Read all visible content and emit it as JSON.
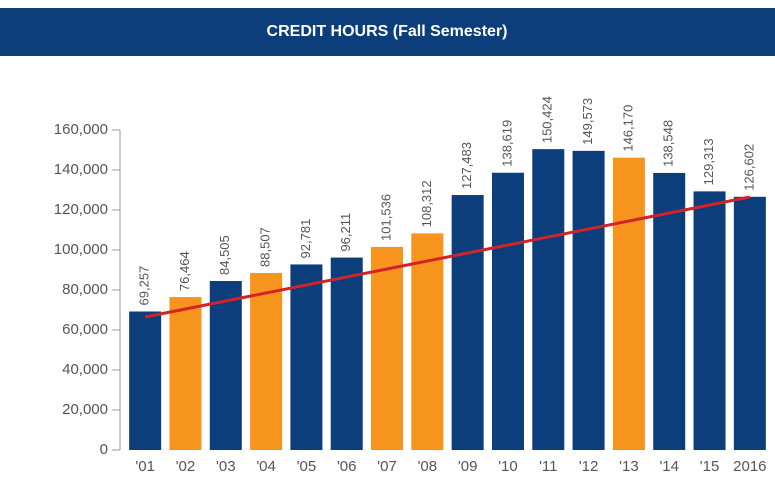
{
  "chart_data": {
    "type": "bar",
    "title": "CREDIT HOURS (Fall Semester)",
    "categories": [
      "'01",
      "'02",
      "'03",
      "'04",
      "'05",
      "'06",
      "'07",
      "'08",
      "'09",
      "'10",
      "'11",
      "'12",
      "'13",
      "'14",
      "'15",
      "2016"
    ],
    "values": [
      69257,
      76464,
      84505,
      88507,
      92781,
      96211,
      101536,
      108312,
      127483,
      138619,
      150424,
      149573,
      146170,
      138548,
      129313,
      126602
    ],
    "value_labels": [
      "69,257",
      "76,464",
      "84,505",
      "88,507",
      "92,781",
      "96,211",
      "101,536",
      "108,312",
      "127,483",
      "138,619",
      "150,424",
      "149,573",
      "146,170",
      "138,548",
      "129,313",
      "126,602"
    ],
    "colors": [
      "#0b3e7a",
      "#f7941e",
      "#0b3e7a",
      "#f7941e",
      "#0b3e7a",
      "#0b3e7a",
      "#f7941e",
      "#f7941e",
      "#0b3e7a",
      "#0b3e7a",
      "#0b3e7a",
      "#0b3e7a",
      "#f7941e",
      "#0b3e7a",
      "#0b3e7a",
      "#0b3e7a"
    ],
    "ylim": [
      0,
      160000
    ],
    "yticks": [
      0,
      {
        "value": 20000,
        "label": "20,000"
      },
      {
        "value": 40000,
        "label": "40,000"
      },
      {
        "value": 60000,
        "label": "60,000"
      },
      {
        "value": 80000,
        "label": "80,000"
      },
      {
        "value": 100000,
        "label": "100,000"
      },
      {
        "value": 120000,
        "label": "120,000"
      },
      {
        "value": 140000,
        "label": "140,000"
      },
      {
        "value": 160000,
        "label": "160,000"
      }
    ],
    "trend": {
      "color": "#d3222a",
      "start": 66500,
      "end": 126500
    }
  }
}
